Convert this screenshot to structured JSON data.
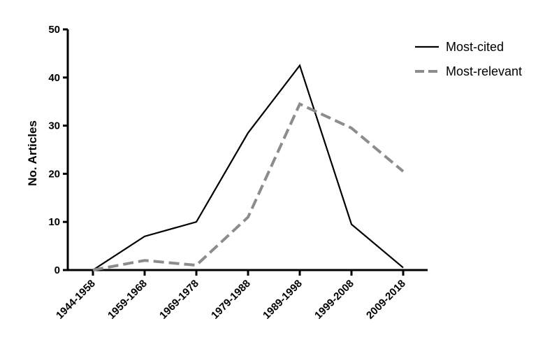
{
  "chart_data": {
    "type": "line",
    "categories": [
      "1944-1958",
      "1959-1968",
      "1969-1978",
      "1979-1988",
      "1989-1998",
      "1999-2008",
      "2009-2018"
    ],
    "series": [
      {
        "name": "Most-cited",
        "values": [
          0,
          7,
          10,
          28.5,
          42.5,
          9.5,
          0.5
        ],
        "color": "#000000",
        "dash": "solid"
      },
      {
        "name": "Most-relevant",
        "values": [
          0,
          2,
          1,
          11,
          34.5,
          29.5,
          20.5
        ],
        "color": "#8c8c8c",
        "dash": "dashed"
      }
    ],
    "ylabel": "No. Articles",
    "xlabel": "",
    "ylim": [
      0,
      50
    ],
    "yticks": [
      0,
      10,
      20,
      30,
      40,
      50
    ],
    "legend_position": "top-right",
    "grid": false
  }
}
